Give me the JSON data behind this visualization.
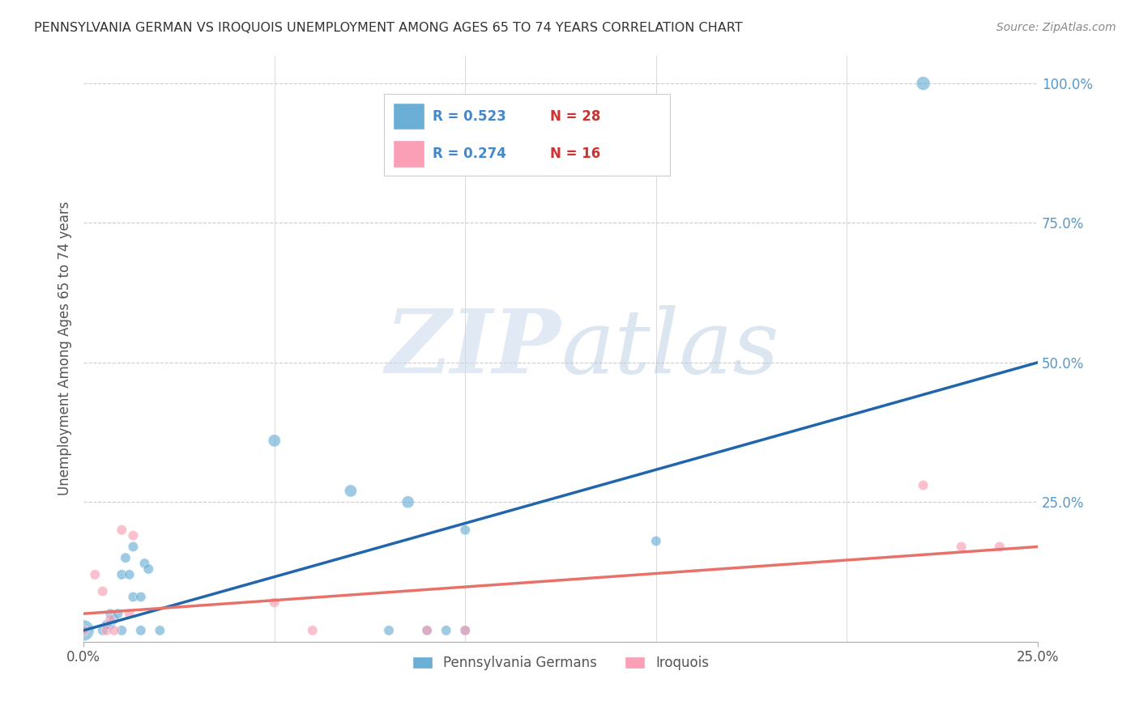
{
  "title": "PENNSYLVANIA GERMAN VS IROQUOIS UNEMPLOYMENT AMONG AGES 65 TO 74 YEARS CORRELATION CHART",
  "source": "Source: ZipAtlas.com",
  "ylabel": "Unemployment Among Ages 65 to 74 years",
  "xlim": [
    0.0,
    0.25
  ],
  "ylim": [
    0.0,
    1.05
  ],
  "ytick_labels_right": [
    "100.0%",
    "75.0%",
    "50.0%",
    "25.0%"
  ],
  "ytick_vals_right": [
    1.0,
    0.75,
    0.5,
    0.25
  ],
  "grid_color": "#cccccc",
  "bg_color": "#ffffff",
  "blue_color": "#6baed6",
  "pink_color": "#fa9fb5",
  "blue_line_color": "#2166ac",
  "pink_line_color": "#e8726a",
  "pennsylvania_x": [
    0.0,
    0.005,
    0.006,
    0.007,
    0.007,
    0.008,
    0.009,
    0.01,
    0.01,
    0.011,
    0.012,
    0.013,
    0.013,
    0.015,
    0.015,
    0.016,
    0.017,
    0.02,
    0.05,
    0.07,
    0.08,
    0.085,
    0.09,
    0.095,
    0.1,
    0.1,
    0.15,
    0.22
  ],
  "pennsylvania_y": [
    0.02,
    0.02,
    0.03,
    0.03,
    0.05,
    0.04,
    0.05,
    0.02,
    0.12,
    0.15,
    0.12,
    0.08,
    0.17,
    0.02,
    0.08,
    0.14,
    0.13,
    0.02,
    0.36,
    0.27,
    0.02,
    0.25,
    0.02,
    0.02,
    0.2,
    0.02,
    0.18,
    1.0
  ],
  "pennsylvania_sizes": [
    350,
    80,
    80,
    80,
    80,
    80,
    80,
    80,
    80,
    80,
    80,
    80,
    80,
    80,
    80,
    80,
    80,
    80,
    120,
    120,
    80,
    120,
    80,
    80,
    80,
    80,
    80,
    150
  ],
  "iroquois_x": [
    0.0,
    0.003,
    0.005,
    0.006,
    0.007,
    0.008,
    0.01,
    0.012,
    0.013,
    0.05,
    0.06,
    0.09,
    0.1,
    0.22,
    0.23,
    0.24
  ],
  "iroquois_y": [
    0.02,
    0.12,
    0.09,
    0.02,
    0.04,
    0.02,
    0.2,
    0.05,
    0.19,
    0.07,
    0.02,
    0.02,
    0.02,
    0.28,
    0.17,
    0.17
  ],
  "iroquois_sizes": [
    80,
    80,
    80,
    80,
    80,
    80,
    80,
    80,
    80,
    80,
    80,
    80,
    80,
    80,
    80,
    80
  ],
  "blue_trendline_x": [
    0.0,
    0.25
  ],
  "blue_trendline_y": [
    0.02,
    0.5
  ],
  "pink_trendline_x": [
    0.0,
    0.25
  ],
  "pink_trendline_y": [
    0.05,
    0.17
  ],
  "legend_r1": "R = 0.523",
  "legend_n1": "N = 28",
  "legend_r2": "R = 0.274",
  "legend_n2": "N = 16"
}
